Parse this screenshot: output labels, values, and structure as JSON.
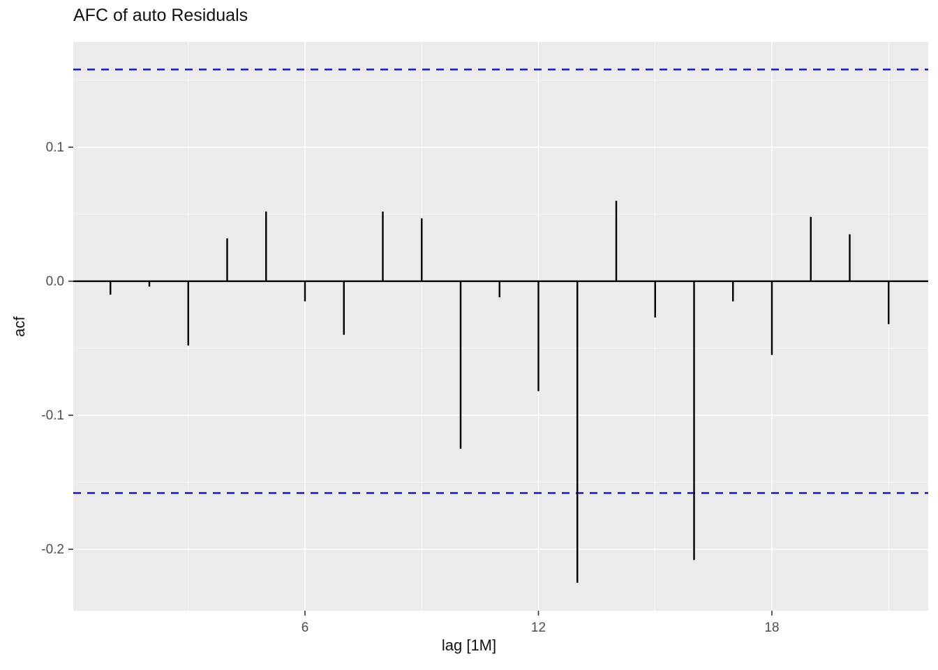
{
  "title": "AFC of auto Residuals",
  "x_axis": {
    "label": "lag [1M]",
    "tick_labels": [
      "6",
      "12",
      "18"
    ],
    "ticks": [
      6,
      12,
      18
    ],
    "minor_ticks": [
      3,
      9,
      15,
      21
    ]
  },
  "y_axis": {
    "label": "acf",
    "tick_labels": [
      "0.1",
      "0.0",
      "-0.1",
      "-0.2"
    ],
    "ticks": [
      0.1,
      0.0,
      -0.1,
      -0.2
    ],
    "minor_ticks": [
      0.15,
      0.05,
      -0.05,
      -0.15
    ]
  },
  "chart_data": {
    "type": "bar",
    "title": "AFC of auto Residuals",
    "xlabel": "lag [1M]",
    "ylabel": "acf",
    "x": [
      1,
      2,
      3,
      4,
      5,
      6,
      7,
      8,
      9,
      10,
      11,
      12,
      13,
      14,
      15,
      16,
      17,
      18,
      19,
      20,
      21
    ],
    "values": [
      -0.01,
      -0.004,
      -0.048,
      0.032,
      0.052,
      -0.015,
      -0.04,
      0.052,
      0.047,
      -0.125,
      -0.012,
      -0.082,
      -0.225,
      0.06,
      -0.027,
      -0.208,
      -0.015,
      -0.055,
      0.048,
      0.035,
      -0.032
    ],
    "confidence_bounds": [
      -0.158,
      0.158
    ],
    "zero_line": 0,
    "xlim": [
      0.045,
      22.018
    ],
    "ylim": [
      -0.2458,
      0.1786
    ],
    "grid": true,
    "legend": false
  },
  "colors": {
    "panel_bg": "#EBEBEB",
    "grid_major": "#FFFFFF",
    "grid_minor": "#F5F5F5",
    "bar": "#000000",
    "zero_line": "#000000",
    "confidence": "#0B0BDD",
    "tick_text": "#4D4D4D",
    "tick_mark": "#333333"
  }
}
